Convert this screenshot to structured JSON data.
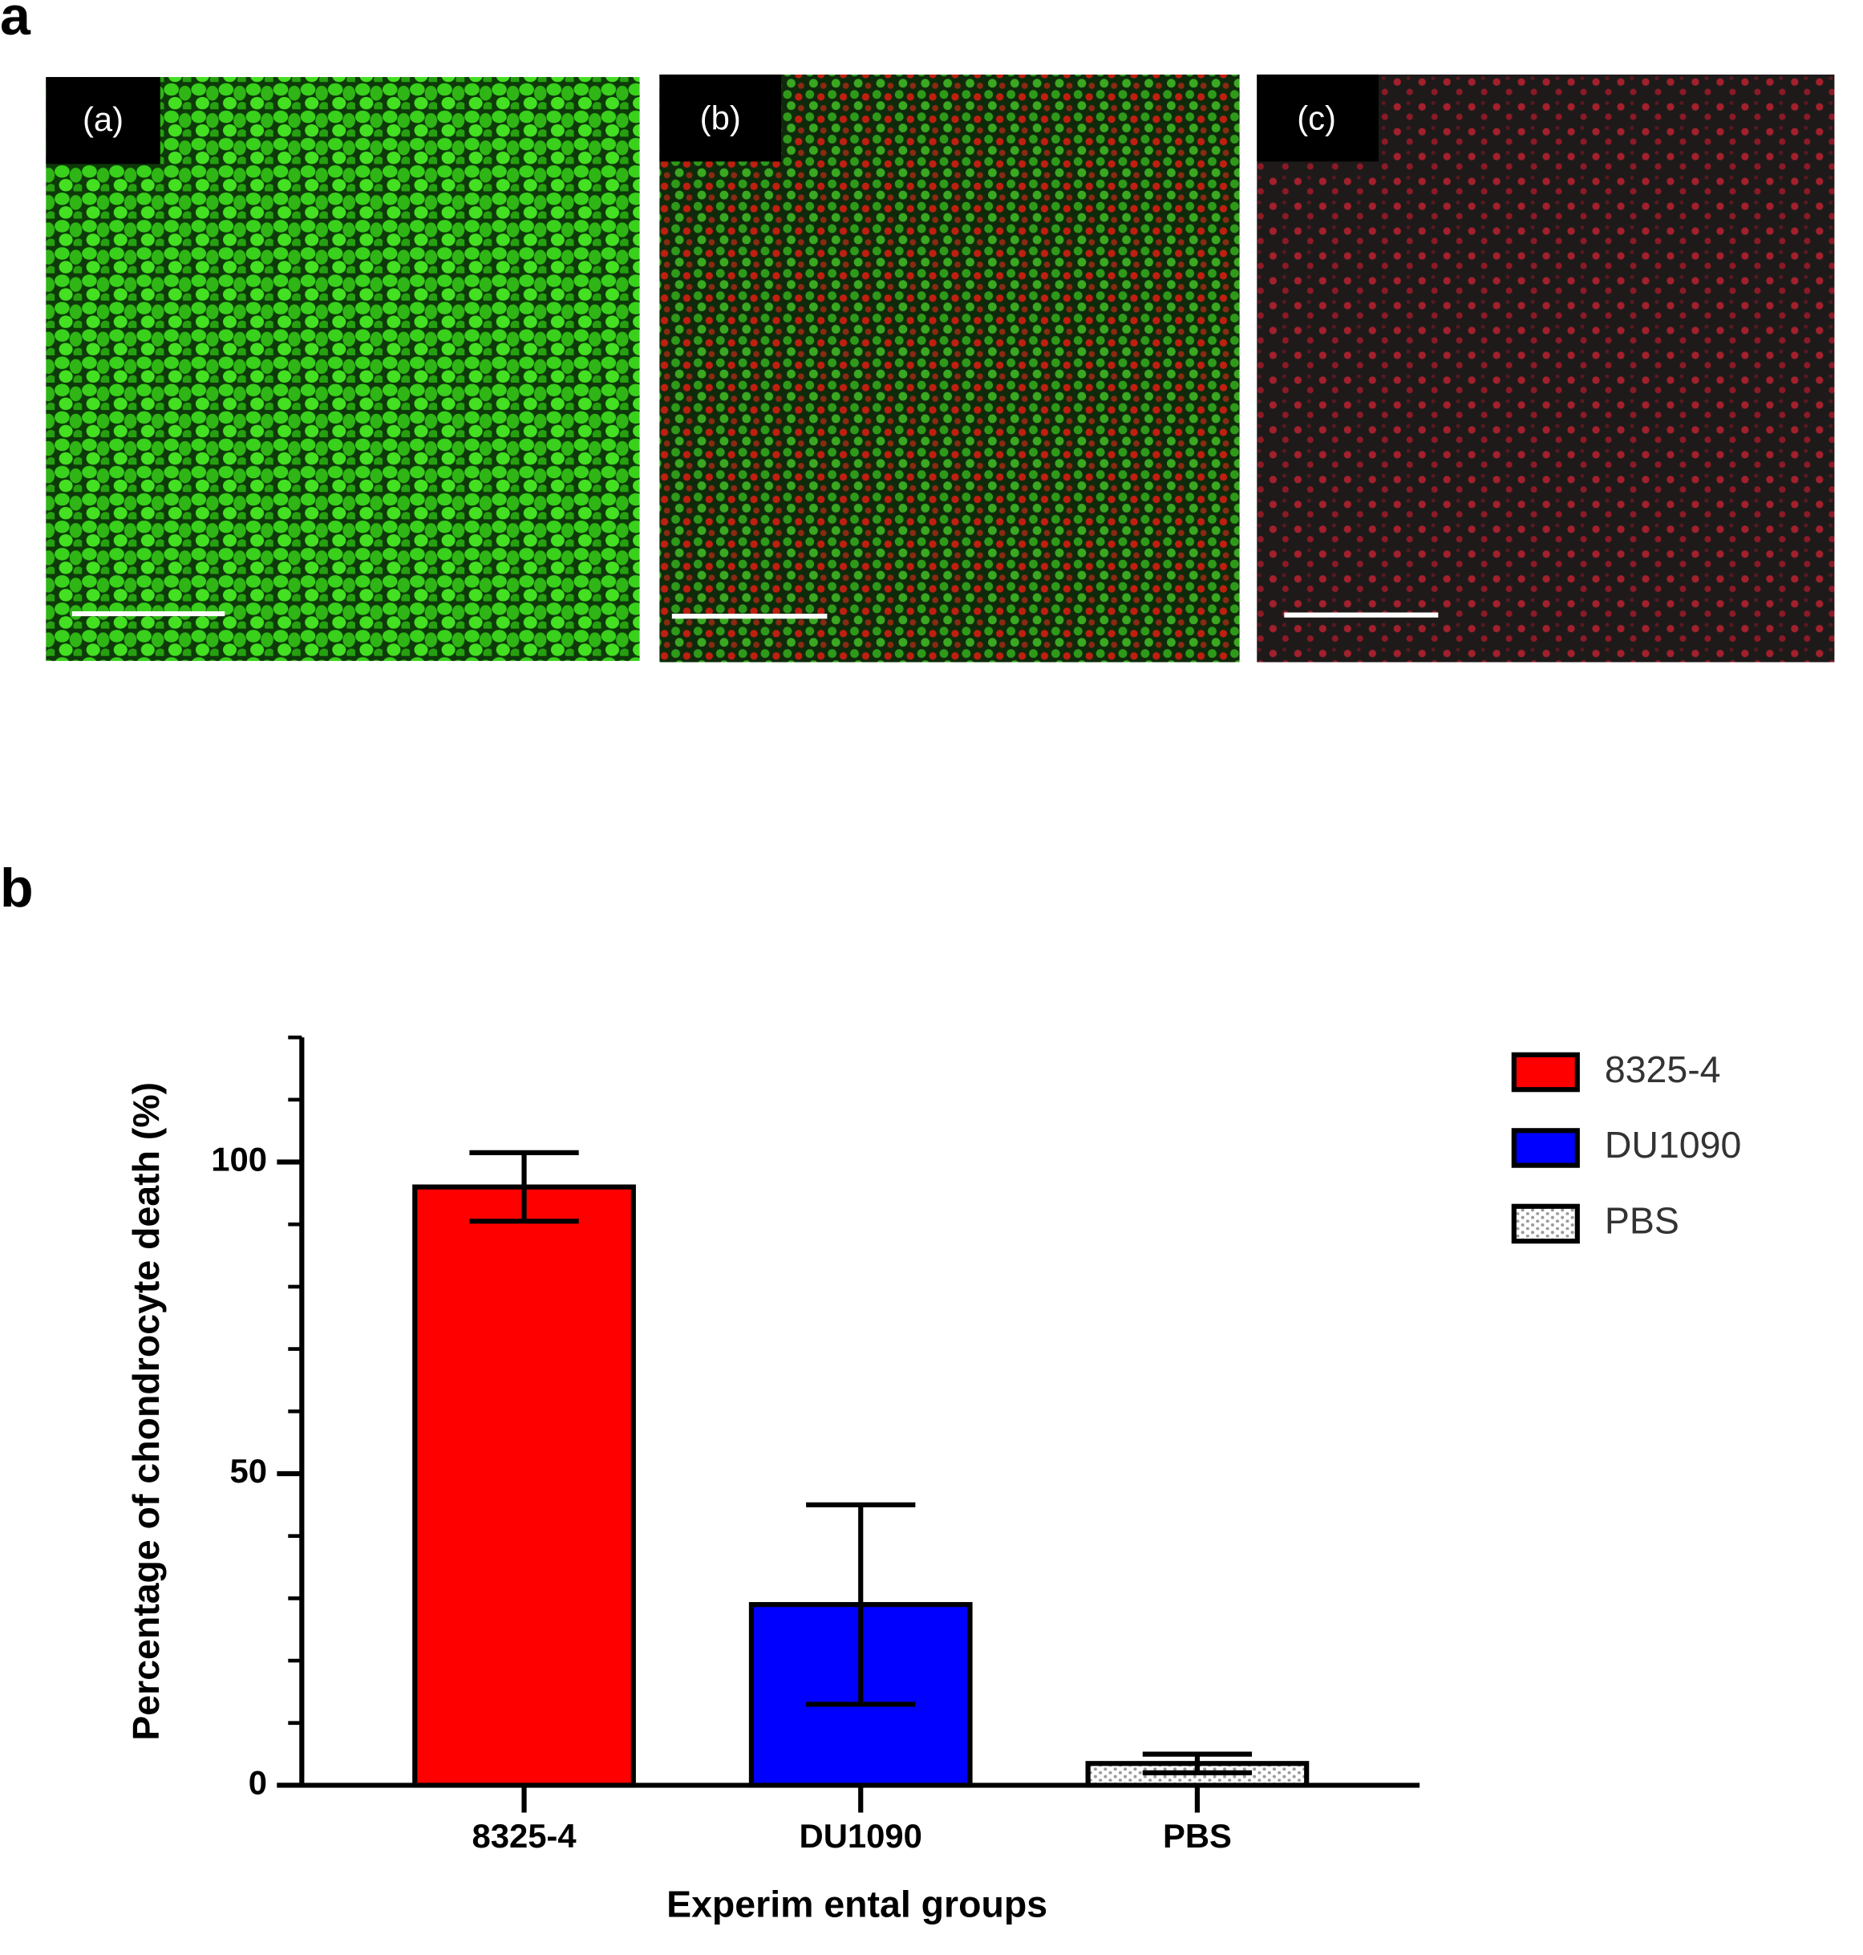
{
  "figure": {
    "panel_a_label": "a",
    "panel_b_label": "b",
    "images": [
      {
        "label": "(a)"
      },
      {
        "label": "(b)"
      },
      {
        "label": "(c)"
      }
    ]
  },
  "chart_data": {
    "type": "bar",
    "ylabel": "Percentage of chondrocyte death (%)",
    "xlabel": "Experim ental groups",
    "categories": [
      "8325-4",
      "DU1090",
      "PBS"
    ],
    "values": [
      96,
      29,
      3.5
    ],
    "errors": [
      5.5,
      16,
      1.5
    ],
    "colors": [
      "#ff0000",
      "#0000ff",
      "pattern"
    ],
    "ylim": [
      0,
      120
    ],
    "yticks": [
      0,
      50,
      100
    ],
    "yminorticks": [
      10,
      20,
      30,
      40,
      60,
      70,
      80,
      90,
      110,
      120
    ],
    "legend": "right"
  }
}
